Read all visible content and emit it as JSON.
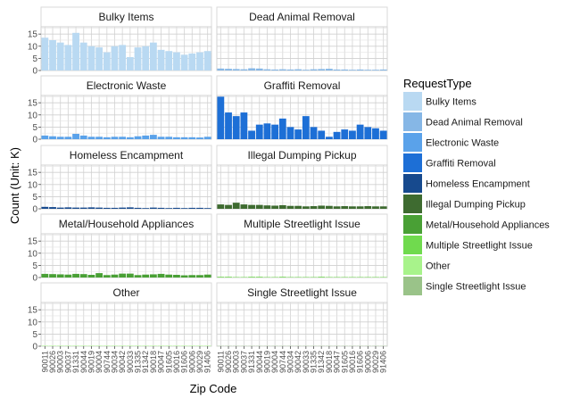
{
  "chart_data": {
    "type": "bar",
    "facet": "wrap",
    "title": "",
    "xlabel": "Zip Code",
    "ylabel": "Count (Unit: K)",
    "ylim": [
      0,
      18
    ],
    "yticks": [
      0,
      5,
      10,
      15
    ],
    "grid": true,
    "legend_position": "right",
    "legend_title": "RequestType",
    "categories": [
      "90011",
      "90026",
      "90003",
      "90037",
      "91331",
      "90044",
      "90019",
      "90004",
      "90744",
      "90034",
      "90042",
      "90033",
      "91335",
      "91342",
      "90018",
      "90047",
      "91605",
      "90016",
      "91606",
      "90006",
      "90029",
      "91406"
    ],
    "x_tick_labels_shown": [
      "90011",
      "90026",
      "90003",
      "90037",
      "91331",
      "90044",
      "90019",
      "90004",
      "90744",
      "90034",
      "90042",
      "90033",
      "91335",
      "91342",
      "90018",
      "90047",
      "91605",
      "90016",
      "91606",
      "90006",
      "90029",
      "91406"
    ],
    "panels": [
      {
        "name": "Bulky Items",
        "color": "#b9d9f2",
        "values": [
          13.5,
          12.5,
          11.5,
          10.5,
          15.5,
          11.5,
          10,
          9.5,
          7.5,
          10,
          10.5,
          5.5,
          9.5,
          10,
          11.5,
          8.5,
          8,
          7.5,
          6.5,
          7,
          7.5,
          8
        ]
      },
      {
        "name": "Dead Animal Removal",
        "color": "#86b7e6",
        "values": [
          0.8,
          0.7,
          0.6,
          0.5,
          0.9,
          0.8,
          0.5,
          0.4,
          0.5,
          0.4,
          0.5,
          0.3,
          0.5,
          0.6,
          0.7,
          0.4,
          0.4,
          0.3,
          0.4,
          0.3,
          0.3,
          0.4
        ]
      },
      {
        "name": "Electronic Waste",
        "color": "#5aa2ea",
        "values": [
          1.5,
          1.2,
          1,
          1,
          2.2,
          1.5,
          1,
          1,
          0.8,
          1,
          1,
          0.8,
          1.2,
          1.5,
          1.8,
          1,
          1,
          0.8,
          0.8,
          0.8,
          0.7,
          1
        ]
      },
      {
        "name": "Graffiti Removal",
        "color": "#1d6fd6",
        "values": [
          17.5,
          11,
          9.5,
          11,
          3.5,
          6,
          6.5,
          6,
          8.5,
          5,
          4,
          9.5,
          5,
          3.5,
          1,
          3,
          4,
          3.5,
          6,
          5,
          4.5,
          3.5
        ]
      },
      {
        "name": "Homeless Encampment",
        "color": "#174a8e",
        "values": [
          0.8,
          0.7,
          0.5,
          0.6,
          0.5,
          0.5,
          0.6,
          0.5,
          0.4,
          0.4,
          0.5,
          0.6,
          0.4,
          0.3,
          0.5,
          0.4,
          0.3,
          0.4,
          0.3,
          0.4,
          0.4,
          0.3
        ]
      },
      {
        "name": "Illegal Dumping Pickup",
        "color": "#3e6b30",
        "values": [
          1.8,
          1.6,
          2.5,
          1.8,
          1.6,
          1.6,
          1.4,
          1.3,
          1.5,
          1.2,
          1.2,
          1,
          1.1,
          1.3,
          1.2,
          1,
          1.1,
          1,
          1,
          1.1,
          1,
          1
        ]
      },
      {
        "name": "Metal/Household Appliances",
        "color": "#49a035",
        "values": [
          1.5,
          1.4,
          1.3,
          1.2,
          1.5,
          1.4,
          1.1,
          1.8,
          1,
          1.2,
          1.6,
          1.6,
          1,
          1.2,
          1.3,
          1.5,
          1.2,
          1.1,
          0.9,
          1,
          1,
          1.2
        ]
      },
      {
        "name": "Multiple Streetlight Issue",
        "color": "#70da4e",
        "values": [
          0.3,
          0.3,
          0.2,
          0.2,
          0.3,
          0.3,
          0.2,
          0.2,
          0.3,
          0.2,
          0.2,
          0.2,
          0.2,
          0.3,
          0.2,
          0.2,
          0.2,
          0.2,
          0.2,
          0.2,
          0.2,
          0.2
        ]
      },
      {
        "name": "Other",
        "color": "#a8f38b",
        "values": [
          0.2,
          0.2,
          0.2,
          0.2,
          0.2,
          0.2,
          0.2,
          0.2,
          0.2,
          0.2,
          0.2,
          0.2,
          0.2,
          0.2,
          0.2,
          0.2,
          0.2,
          0.2,
          0.2,
          0.2,
          0.2,
          0.2
        ]
      },
      {
        "name": "Single Streetlight Issue",
        "color": "#9ac389",
        "values": [
          0.1,
          0.1,
          0.1,
          0.1,
          0.1,
          0.1,
          0.1,
          0.1,
          0.1,
          0.1,
          0.1,
          0.1,
          0.1,
          0.1,
          0.1,
          0.1,
          0.1,
          0.1,
          0.1,
          0.1,
          0.1,
          0.1
        ]
      }
    ]
  }
}
